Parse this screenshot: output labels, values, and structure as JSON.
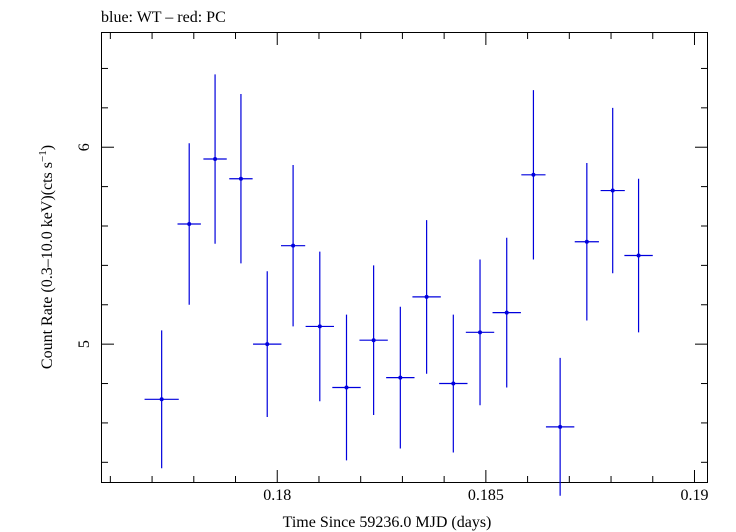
{
  "chart_data": {
    "type": "scatter",
    "title": "blue: WT – red: PC",
    "xlabel": "Time Since 59236.0 MJD (days)",
    "ylabel_main": "Count Rate (0.3–10.0 keV)(cts s",
    "ylabel_sup": "−1",
    "ylabel_end": ")",
    "xlim": [
      0.1758,
      0.1903
    ],
    "ylim": [
      4.3,
      6.58
    ],
    "x_ticks": [
      0.18,
      0.185,
      0.19
    ],
    "x_tick_labels": [
      "0.18",
      "0.185",
      "0.19"
    ],
    "y_ticks": [
      5,
      6
    ],
    "y_tick_labels": [
      "5",
      "6"
    ],
    "grid": false,
    "series": [
      {
        "color": "#0000dd",
        "points": [
          {
            "x": 0.17723,
            "xerr": 0.00041,
            "y": 4.72,
            "yerr": 0.35
          },
          {
            "x": 0.17789,
            "xerr": 0.00028,
            "y": 5.61,
            "yerr": 0.41
          },
          {
            "x": 0.17851,
            "xerr": 0.00028,
            "y": 5.94,
            "yerr": 0.43
          },
          {
            "x": 0.17913,
            "xerr": 0.00028,
            "y": 5.84,
            "yerr": 0.43
          },
          {
            "x": 0.17976,
            "xerr": 0.00034,
            "y": 5.0,
            "yerr": 0.37
          },
          {
            "x": 0.18038,
            "xerr": 0.00029,
            "y": 5.5,
            "yerr": 0.41
          },
          {
            "x": 0.18102,
            "xerr": 0.00034,
            "y": 5.09,
            "yerr": 0.38
          },
          {
            "x": 0.18166,
            "xerr": 0.00034,
            "y": 4.78,
            "yerr": 0.37
          },
          {
            "x": 0.18231,
            "xerr": 0.00034,
            "y": 5.02,
            "yerr": 0.38
          },
          {
            "x": 0.18295,
            "xerr": 0.00034,
            "y": 4.83,
            "yerr": 0.36
          },
          {
            "x": 0.18358,
            "xerr": 0.00034,
            "y": 5.24,
            "yerr": 0.39
          },
          {
            "x": 0.18422,
            "xerr": 0.00034,
            "y": 4.8,
            "yerr": 0.35
          },
          {
            "x": 0.18486,
            "xerr": 0.00034,
            "y": 5.06,
            "yerr": 0.37
          },
          {
            "x": 0.1855,
            "xerr": 0.00034,
            "y": 5.16,
            "yerr": 0.38
          },
          {
            "x": 0.18614,
            "xerr": 0.00029,
            "y": 5.86,
            "yerr": 0.43
          },
          {
            "x": 0.18678,
            "xerr": 0.00034,
            "y": 4.58,
            "yerr": 0.35
          },
          {
            "x": 0.18742,
            "xerr": 0.00029,
            "y": 5.52,
            "yerr": 0.4
          },
          {
            "x": 0.18804,
            "xerr": 0.00029,
            "y": 5.78,
            "yerr": 0.42
          },
          {
            "x": 0.18866,
            "xerr": 0.00034,
            "y": 5.45,
            "yerr": 0.39
          }
        ]
      }
    ]
  }
}
